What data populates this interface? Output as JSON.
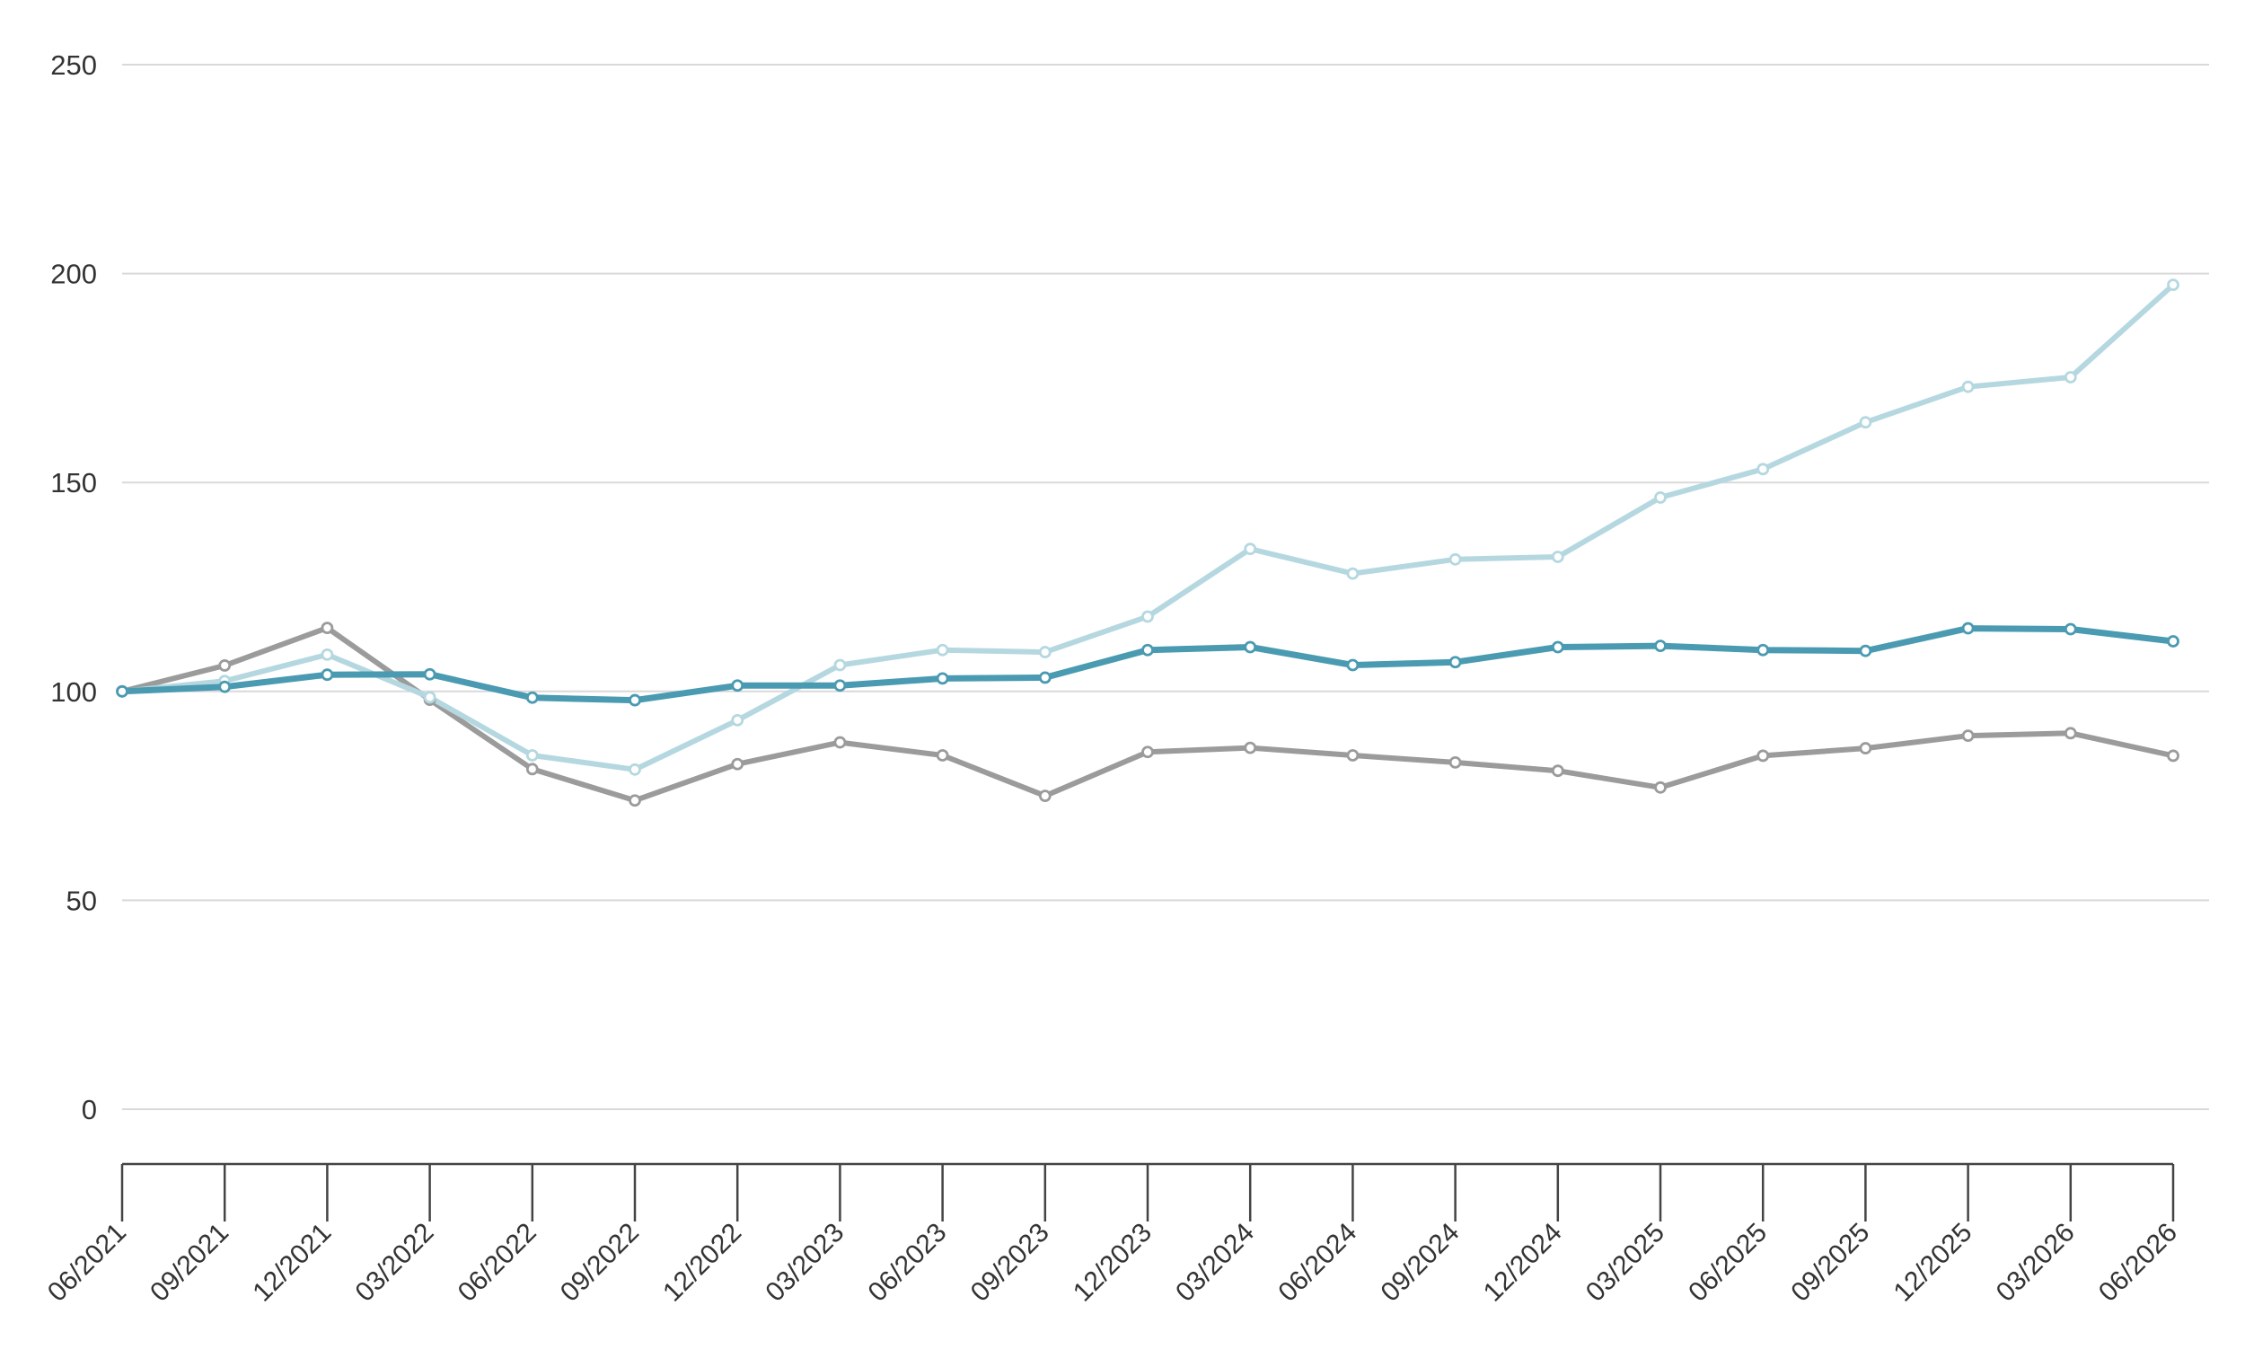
{
  "chart_data": {
    "type": "line",
    "title": "",
    "xlabel": "",
    "ylabel": "",
    "grid": true,
    "legend": "none",
    "ylim": [
      0,
      250
    ],
    "y_ticks": [
      0,
      50,
      100,
      150,
      200,
      250
    ],
    "categories": [
      "06/2021",
      "09/2021",
      "12/2021",
      "03/2022",
      "06/2022",
      "09/2022",
      "12/2022",
      "03/2023",
      "06/2023",
      "09/2023",
      "12/2023",
      "03/2024",
      "06/2024",
      "09/2024",
      "12/2024",
      "03/2025",
      "06/2025",
      "09/2025",
      "12/2025",
      "03/2026",
      "06/2026"
    ],
    "series": [
      {
        "color": "#9b9b9b",
        "values": [
          100,
          106.2,
          115.2,
          98,
          81.4,
          73.9,
          82.6,
          87.8,
          84.7,
          75,
          85.5,
          86.5,
          84.7,
          83,
          81,
          77,
          84.6,
          86.4,
          89.4,
          90,
          84.6
        ]
      },
      {
        "color": "#b5d8e0",
        "values": [
          100,
          102.5,
          108.8,
          98.6,
          84.7,
          81.3,
          93.1,
          106.3,
          109.9,
          109.4,
          117.9,
          134.1,
          128.2,
          131.6,
          132.2,
          146.4,
          153.2,
          164.4,
          172.9,
          175.2,
          197.3
        ]
      },
      {
        "color": "#4a9ab2",
        "values": [
          100,
          101.1,
          104,
          104.1,
          98.5,
          97.9,
          101.4,
          101.4,
          103.1,
          103.3,
          109.9,
          110.6,
          106.3,
          107,
          110.6,
          110.9,
          109.9,
          109.7,
          115.1,
          114.9,
          112
        ]
      }
    ]
  }
}
